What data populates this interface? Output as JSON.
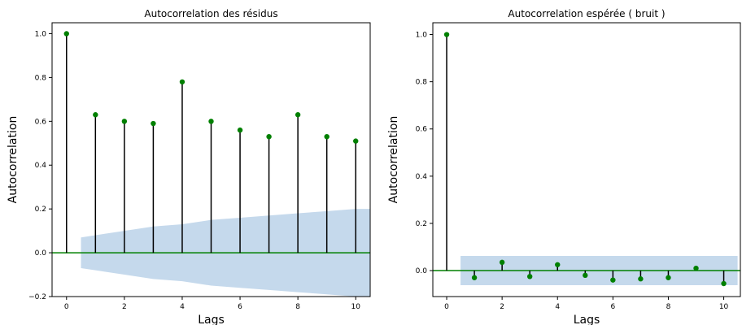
{
  "chart_data": [
    {
      "type": "stem",
      "title": "Autocorrelation des résidus",
      "xlabel": "Lags",
      "ylabel": "Autocorrelation",
      "xlim": [
        -0.5,
        10.5
      ],
      "ylim": [
        -0.2,
        1.05
      ],
      "xticks": [
        0,
        2,
        4,
        6,
        8,
        10
      ],
      "xtick_labels": [
        "0",
        "2",
        "4",
        "6",
        "8",
        "10"
      ],
      "yticks": [
        -0.2,
        0.0,
        0.2,
        0.4,
        0.6,
        0.8,
        1.0
      ],
      "ytick_labels": [
        "−0.2",
        "0.0",
        "0.2",
        "0.4",
        "0.6",
        "0.8",
        "1.0"
      ],
      "lags": [
        0,
        1,
        2,
        3,
        4,
        5,
        6,
        7,
        8,
        9,
        10
      ],
      "values": [
        1.0,
        0.63,
        0.6,
        0.59,
        0.78,
        0.6,
        0.56,
        0.53,
        0.63,
        0.53,
        0.51
      ],
      "confidence_band": {
        "x": [
          0.5,
          1,
          2,
          3,
          4,
          5,
          6,
          7,
          8,
          9,
          10,
          10.5
        ],
        "upper": [
          0.07,
          0.08,
          0.1,
          0.12,
          0.13,
          0.15,
          0.16,
          0.17,
          0.18,
          0.19,
          0.2,
          0.2
        ],
        "lower": [
          -0.07,
          -0.08,
          -0.1,
          -0.12,
          -0.13,
          -0.15,
          -0.16,
          -0.17,
          -0.18,
          -0.19,
          -0.2,
          -0.2
        ]
      },
      "grid": false,
      "colors": {
        "marker": "#008000",
        "stem": "#000000",
        "baseline": "#008000",
        "band": "#c5d9ec"
      }
    },
    {
      "type": "stem",
      "title": "Autocorrelation espérée ( bruit )",
      "xlabel": "Lags",
      "ylabel": "Autocorrelation",
      "xlim": [
        -0.5,
        10.6
      ],
      "ylim": [
        -0.11,
        1.05
      ],
      "xticks": [
        0,
        2,
        4,
        6,
        8,
        10
      ],
      "xtick_labels": [
        "0",
        "2",
        "4",
        "6",
        "8",
        "10"
      ],
      "yticks": [
        0.0,
        0.2,
        0.4,
        0.6,
        0.8,
        1.0
      ],
      "ytick_labels": [
        "0.0",
        "0.2",
        "0.4",
        "0.6",
        "0.8",
        "1.0"
      ],
      "lags": [
        0,
        1,
        2,
        3,
        4,
        5,
        6,
        7,
        8,
        9,
        10
      ],
      "values": [
        1.0,
        -0.03,
        0.035,
        -0.025,
        0.025,
        -0.02,
        -0.04,
        -0.035,
        -0.03,
        0.01,
        -0.055
      ],
      "confidence_band": {
        "x": [
          0.5,
          10.5
        ],
        "upper": [
          0.062,
          0.062
        ],
        "lower": [
          -0.062,
          -0.062
        ]
      },
      "grid": false,
      "colors": {
        "marker": "#008000",
        "stem": "#000000",
        "baseline": "#008000",
        "band": "#c5d9ec"
      }
    }
  ]
}
